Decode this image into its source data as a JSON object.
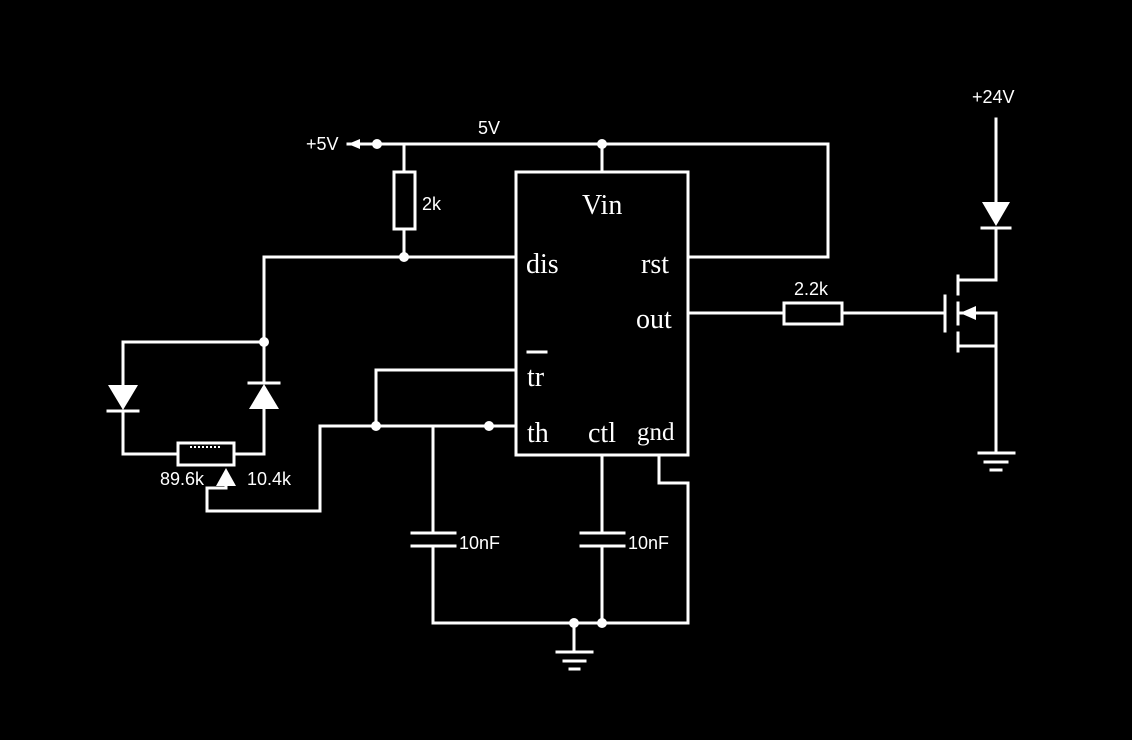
{
  "supply": {
    "plus5v": "+5V",
    "rail": "5V",
    "plus24v": "+24V"
  },
  "components": {
    "r_pullup": "2k",
    "r_gate": "2.2k",
    "pot_left": "89.6k",
    "pot_right": "10.4k",
    "c_timing": "10nF",
    "c_ctl": "10nF"
  },
  "ic": {
    "vin": "Vin",
    "dis": "dis",
    "rst": "rst",
    "out": "out",
    "tr": "tr",
    "th": "th",
    "ctl": "ctl",
    "gnd": "gnd"
  },
  "colors": {
    "background": "#000000",
    "wire": "#ffffff"
  }
}
